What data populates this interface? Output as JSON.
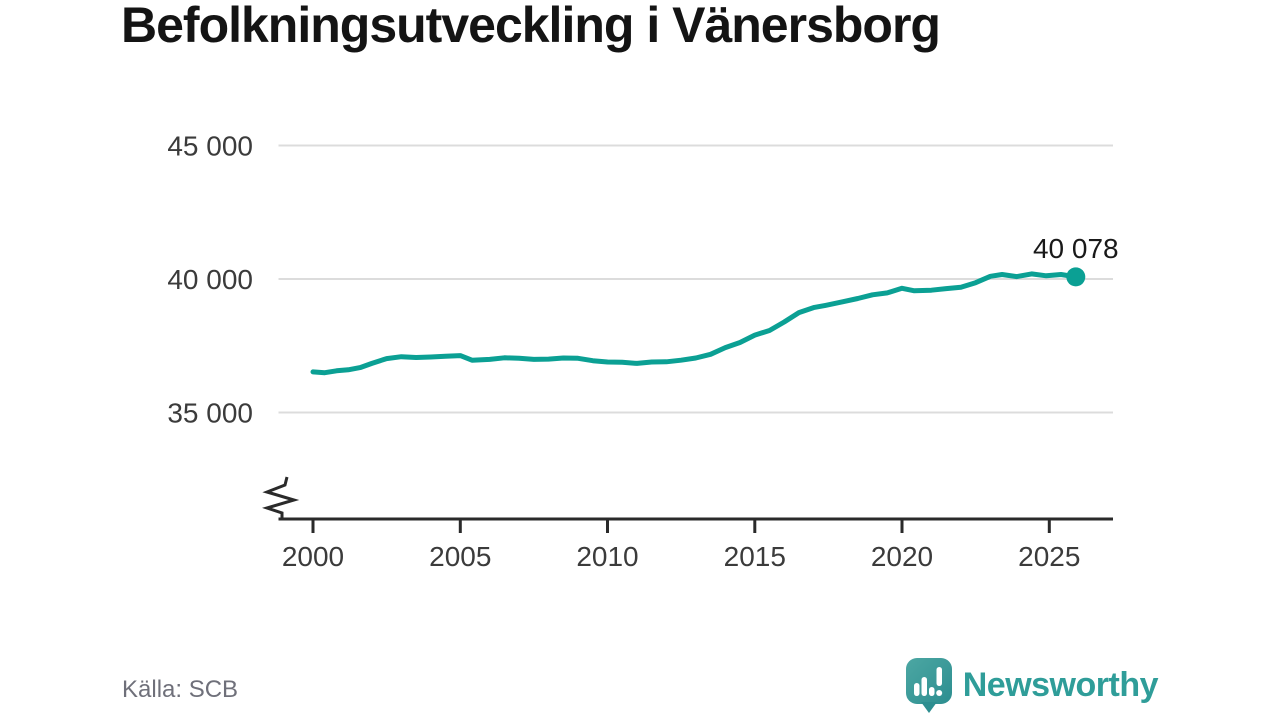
{
  "title": "Befolkningsutveckling i Vänersborg",
  "source": "Källa: SCB",
  "branding": {
    "name": "Newsworthy"
  },
  "colors": {
    "line": "#0ba094",
    "grid": "#dcdcdc",
    "axis": "#2a2a2a",
    "tick_label": "#3b3b3b",
    "end_label": "#191919",
    "brand_teal": "#2f9d99",
    "brand_icon_top": "#4ca7a3",
    "brand_icon_bottom": "#2d8e90"
  },
  "chart_data": {
    "type": "line",
    "title": "Befolkningsutveckling i Vänersborg",
    "xlabel": "",
    "ylabel": "",
    "grid": "horizontal only",
    "legend": "none",
    "axis_break": true,
    "xlim": [
      1998.8,
      2027.3
    ],
    "ylim_visible": [
      33500,
      45000
    ],
    "x_ticks": [
      2000,
      2005,
      2010,
      2015,
      2020,
      2025
    ],
    "y_ticks": [
      {
        "value": 45000,
        "label": "45 000"
      },
      {
        "value": 40000,
        "label": "40 000"
      },
      {
        "value": 35000,
        "label": "35 000"
      }
    ],
    "end_label": "40 078",
    "end_value": 40078,
    "series": [
      {
        "name": "Befolkning",
        "points": [
          [
            2000.0,
            36520
          ],
          [
            2000.4,
            36490
          ],
          [
            2000.8,
            36560
          ],
          [
            2001.2,
            36600
          ],
          [
            2001.6,
            36680
          ],
          [
            2002.0,
            36840
          ],
          [
            2002.5,
            37020
          ],
          [
            2003.0,
            37090
          ],
          [
            2003.5,
            37060
          ],
          [
            2004.0,
            37080
          ],
          [
            2004.5,
            37110
          ],
          [
            2005.0,
            37130
          ],
          [
            2005.4,
            36960
          ],
          [
            2006.0,
            36990
          ],
          [
            2006.5,
            37050
          ],
          [
            2007.0,
            37030
          ],
          [
            2007.5,
            36990
          ],
          [
            2008.0,
            37000
          ],
          [
            2008.5,
            37040
          ],
          [
            2009.0,
            37030
          ],
          [
            2009.5,
            36940
          ],
          [
            2010.0,
            36890
          ],
          [
            2010.5,
            36880
          ],
          [
            2011.0,
            36840
          ],
          [
            2011.5,
            36890
          ],
          [
            2012.0,
            36900
          ],
          [
            2012.5,
            36960
          ],
          [
            2013.0,
            37040
          ],
          [
            2013.5,
            37180
          ],
          [
            2014.0,
            37430
          ],
          [
            2014.5,
            37620
          ],
          [
            2015.0,
            37900
          ],
          [
            2015.5,
            38070
          ],
          [
            2016.0,
            38390
          ],
          [
            2016.5,
            38740
          ],
          [
            2017.0,
            38930
          ],
          [
            2017.4,
            39010
          ],
          [
            2018.0,
            39150
          ],
          [
            2018.5,
            39270
          ],
          [
            2019.0,
            39410
          ],
          [
            2019.5,
            39480
          ],
          [
            2020.0,
            39650
          ],
          [
            2020.4,
            39560
          ],
          [
            2021.0,
            39580
          ],
          [
            2021.5,
            39640
          ],
          [
            2022.0,
            39690
          ],
          [
            2022.5,
            39860
          ],
          [
            2023.0,
            40100
          ],
          [
            2023.4,
            40170
          ],
          [
            2023.9,
            40090
          ],
          [
            2024.4,
            40190
          ],
          [
            2024.9,
            40120
          ],
          [
            2025.4,
            40170
          ],
          [
            2025.9,
            40078
          ]
        ]
      }
    ]
  }
}
